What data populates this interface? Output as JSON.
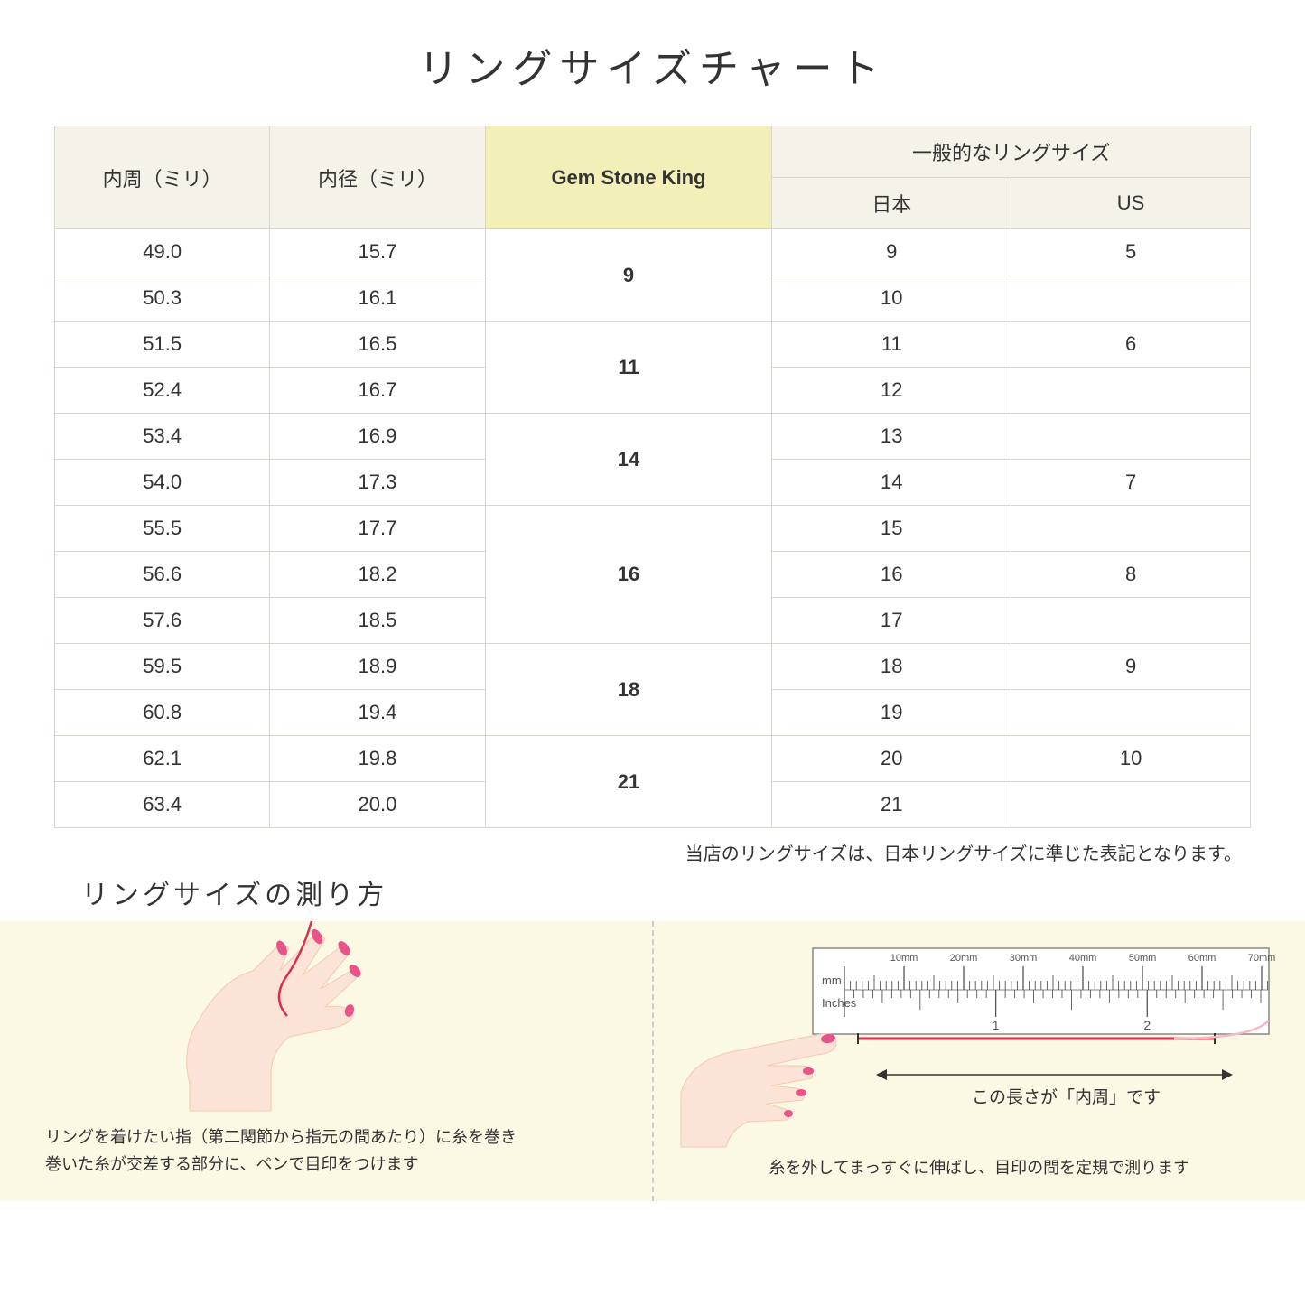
{
  "title": "リングサイズチャート",
  "headers": {
    "circumference": "内周（ミリ）",
    "diameter": "内径（ミリ）",
    "gsk": "Gem Stone King",
    "general": "一般的なリングサイズ",
    "japan": "日本",
    "us": "US"
  },
  "groups": [
    {
      "gsk": "9",
      "rows": [
        {
          "c": "49.0",
          "d": "15.7",
          "jp": "9",
          "us": "5"
        },
        {
          "c": "50.3",
          "d": "16.1",
          "jp": "10",
          "us": ""
        }
      ]
    },
    {
      "gsk": "11",
      "rows": [
        {
          "c": "51.5",
          "d": "16.5",
          "jp": "11",
          "us": "6"
        },
        {
          "c": "52.4",
          "d": "16.7",
          "jp": "12",
          "us": ""
        }
      ]
    },
    {
      "gsk": "14",
      "rows": [
        {
          "c": "53.4",
          "d": "16.9",
          "jp": "13",
          "us": ""
        },
        {
          "c": "54.0",
          "d": "17.3",
          "jp": "14",
          "us": "7"
        }
      ]
    },
    {
      "gsk": "16",
      "rows": [
        {
          "c": "55.5",
          "d": "17.7",
          "jp": "15",
          "us": ""
        },
        {
          "c": "56.6",
          "d": "18.2",
          "jp": "16",
          "us": "8"
        },
        {
          "c": "57.6",
          "d": "18.5",
          "jp": "17",
          "us": ""
        }
      ]
    },
    {
      "gsk": "18",
      "rows": [
        {
          "c": "59.5",
          "d": "18.9",
          "jp": "18",
          "us": "9"
        },
        {
          "c": "60.8",
          "d": "19.4",
          "jp": "19",
          "us": ""
        }
      ]
    },
    {
      "gsk": "21",
      "rows": [
        {
          "c": "62.1",
          "d": "19.8",
          "jp": "20",
          "us": "10"
        },
        {
          "c": "63.4",
          "d": "20.0",
          "jp": "21",
          "us": ""
        }
      ]
    }
  ],
  "note": "当店のリングサイズは、日本リングサイズに準じた表記となります。",
  "measure_title": "リングサイズの測り方",
  "inst_left_1": "リングを着けたい指（第二関節から指元の間あたり）に糸を巻き",
  "inst_left_2": "巻いた糸が交差する部分に、ペンで目印をつけます",
  "inst_right": "糸を外してまっすぐに伸ばし、目印の間を定規で測ります",
  "length_label": "この長さが「内周」です",
  "ruler": {
    "mm_label": "mm",
    "inch_label": "Inches",
    "mm_marks": [
      "10mm",
      "20mm",
      "30mm",
      "40mm",
      "50mm",
      "60mm",
      "70mm"
    ],
    "inch_marks": [
      "1",
      "2"
    ]
  },
  "colors": {
    "header_plain": "#f4f2e9",
    "header_gsk": "#f2f0b8",
    "border": "#d8d6ce",
    "inst_bg": "#fbf8e4",
    "skin": "#fce3d7",
    "skin_dark": "#f5c9b0",
    "nail": "#e8548a",
    "thread": "#d9304f",
    "ruler_body": "#ffffff",
    "ruler_mark": "#555555"
  }
}
